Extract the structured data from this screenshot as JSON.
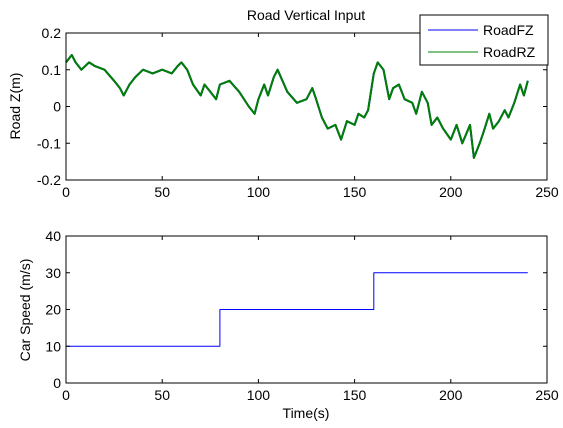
{
  "chart_data": [
    {
      "type": "line",
      "title": "Road Vertical Input",
      "xlabel": "",
      "ylabel": "Road Z(m)",
      "xlim": [
        0,
        250
      ],
      "ylim": [
        -0.2,
        0.2
      ],
      "xticks": [
        0,
        50,
        100,
        150,
        200,
        250
      ],
      "xtick_labels": [
        "0",
        "50",
        "100",
        "150",
        "200",
        "250"
      ],
      "yticks": [
        -0.2,
        -0.1,
        0,
        0.1,
        0.2
      ],
      "ytick_labels": [
        "-0.2",
        "-0.1",
        "0",
        "0.1",
        "0.2"
      ],
      "grid": false,
      "legend": "top-right",
      "series": [
        {
          "name": "RoadFZ",
          "color": "#0000ff",
          "x": [
            0,
            3,
            5,
            8,
            12,
            15,
            20,
            25,
            28,
            30,
            33,
            36,
            40,
            45,
            50,
            55,
            58,
            60,
            63,
            66,
            70,
            72,
            75,
            78,
            80,
            85,
            90,
            95,
            98,
            100,
            103,
            105,
            108,
            110,
            115,
            120,
            125,
            128,
            130,
            133,
            136,
            140,
            143,
            146,
            150,
            152,
            155,
            157,
            160,
            162,
            165,
            168,
            170,
            173,
            176,
            180,
            182,
            185,
            188,
            190,
            193,
            196,
            200,
            203,
            206,
            210,
            212,
            215,
            217,
            220,
            222,
            225,
            228,
            230,
            233,
            236,
            238,
            240
          ],
          "y": [
            0.12,
            0.14,
            0.12,
            0.1,
            0.12,
            0.11,
            0.1,
            0.07,
            0.05,
            0.03,
            0.06,
            0.08,
            0.1,
            0.09,
            0.1,
            0.09,
            0.11,
            0.12,
            0.1,
            0.06,
            0.03,
            0.06,
            0.04,
            0.02,
            0.06,
            0.07,
            0.04,
            0.0,
            -0.02,
            0.02,
            0.06,
            0.03,
            0.08,
            0.1,
            0.04,
            0.01,
            0.02,
            0.05,
            0.02,
            -0.03,
            -0.06,
            -0.05,
            -0.09,
            -0.04,
            -0.05,
            -0.02,
            -0.03,
            -0.01,
            0.09,
            0.12,
            0.1,
            0.02,
            0.05,
            0.06,
            0.02,
            0.01,
            -0.02,
            0.04,
            0.01,
            -0.05,
            -0.03,
            -0.06,
            -0.09,
            -0.05,
            -0.1,
            -0.05,
            -0.14,
            -0.1,
            -0.07,
            -0.02,
            -0.06,
            -0.04,
            -0.01,
            -0.03,
            0.01,
            0.06,
            0.03,
            0.07
          ]
        },
        {
          "name": "RoadRZ",
          "color": "#008000",
          "x": [
            0,
            3,
            5,
            8,
            12,
            15,
            20,
            25,
            28,
            30,
            33,
            36,
            40,
            45,
            50,
            55,
            58,
            60,
            63,
            66,
            70,
            72,
            75,
            78,
            80,
            85,
            90,
            95,
            98,
            100,
            103,
            105,
            108,
            110,
            115,
            120,
            125,
            128,
            130,
            133,
            136,
            140,
            143,
            146,
            150,
            152,
            155,
            157,
            160,
            162,
            165,
            168,
            170,
            173,
            176,
            180,
            182,
            185,
            188,
            190,
            193,
            196,
            200,
            203,
            206,
            210,
            212,
            215,
            217,
            220,
            222,
            225,
            228,
            230,
            233,
            236,
            238,
            240
          ],
          "y": [
            0.12,
            0.14,
            0.12,
            0.1,
            0.12,
            0.11,
            0.1,
            0.07,
            0.05,
            0.03,
            0.06,
            0.08,
            0.1,
            0.09,
            0.1,
            0.09,
            0.11,
            0.12,
            0.1,
            0.06,
            0.03,
            0.06,
            0.04,
            0.02,
            0.06,
            0.07,
            0.04,
            0.0,
            -0.02,
            0.02,
            0.06,
            0.03,
            0.08,
            0.1,
            0.04,
            0.01,
            0.02,
            0.05,
            0.02,
            -0.03,
            -0.06,
            -0.05,
            -0.09,
            -0.04,
            -0.05,
            -0.02,
            -0.03,
            -0.01,
            0.09,
            0.12,
            0.1,
            0.02,
            0.05,
            0.06,
            0.02,
            0.01,
            -0.02,
            0.04,
            0.01,
            -0.05,
            -0.03,
            -0.06,
            -0.09,
            -0.05,
            -0.1,
            -0.05,
            -0.14,
            -0.1,
            -0.07,
            -0.02,
            -0.06,
            -0.04,
            -0.01,
            -0.03,
            0.01,
            0.06,
            0.03,
            0.07
          ]
        }
      ]
    },
    {
      "type": "line",
      "title": "",
      "xlabel": "Time(s)",
      "ylabel": "Car Speed (m/s)",
      "xlim": [
        0,
        250
      ],
      "ylim": [
        0,
        40
      ],
      "xticks": [
        0,
        50,
        100,
        150,
        200,
        250
      ],
      "xtick_labels": [
        "0",
        "50",
        "100",
        "150",
        "200",
        "250"
      ],
      "yticks": [
        0,
        10,
        20,
        30,
        40
      ],
      "ytick_labels": [
        "0",
        "10",
        "20",
        "30",
        "40"
      ],
      "grid": false,
      "series": [
        {
          "color": "#0000ff",
          "x": [
            0,
            80,
            80,
            160,
            160,
            240
          ],
          "y": [
            10,
            10,
            20,
            20,
            30,
            30
          ]
        }
      ]
    }
  ]
}
